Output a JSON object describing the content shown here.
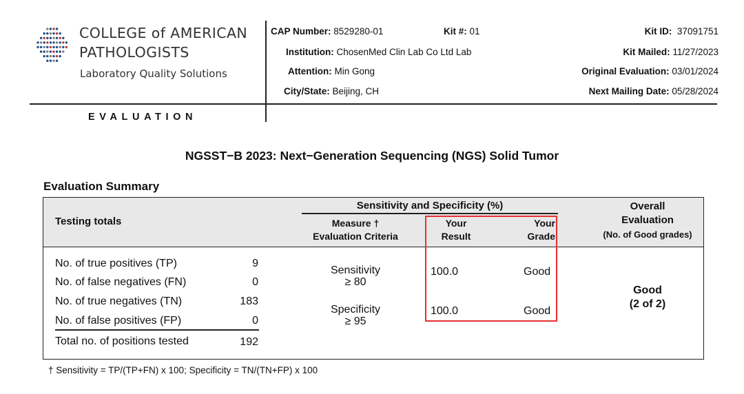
{
  "organization": {
    "name_line1": "COLLEGE of AMERICAN",
    "name_line2": "PATHOLOGISTS",
    "tagline": "Laboratory Quality Solutions",
    "dot_colors": [
      "#1f4e8c",
      "#c0392b",
      "#7f7f7f"
    ]
  },
  "document_label": "EVALUATION",
  "header": {
    "cap_number_label": "CAP Number:",
    "cap_number": "8529280-01",
    "kit_no_label": "Kit #:",
    "kit_no": "01",
    "kit_id_label": "Kit ID:",
    "kit_id": "37091751",
    "institution_label": "Institution:",
    "institution": "ChosenMed Clin Lab Co Ltd Lab",
    "kit_mailed_label": "Kit Mailed:",
    "kit_mailed": "11/27/2023",
    "attention_label": "Attention:",
    "attention": "Min Gong",
    "original_eval_label": "Original Evaluation:",
    "original_eval": "03/01/2024",
    "city_state_label": "City/State:",
    "city_state": "Beijing, CH",
    "next_mailing_label": "Next Mailing Date:",
    "next_mailing": "05/28/2024"
  },
  "title": "NGSST−B 2023: Next−Generation Sequencing (NGS) Solid Tumor",
  "summary": {
    "section_title": "Evaluation Summary",
    "col_testing_totals": "Testing totals",
    "col_group": "Sensitivity and Specificity (%)",
    "col_measure_1": "Measure †",
    "col_measure_2": "Evaluation Criteria",
    "col_result_1": "Your",
    "col_result_2": "Result",
    "col_grade_1": "Your",
    "col_grade_2": "Grade",
    "col_overall_1": "Overall",
    "col_overall_2": "Evaluation",
    "col_overall_3": "(No. of Good grades)",
    "totals": [
      {
        "label": "No. of true positives (TP)",
        "value": "9"
      },
      {
        "label": "No. of false negatives (FN)",
        "value": "0"
      },
      {
        "label": "No. of true negatives (TN)",
        "value": "183"
      },
      {
        "label": "No. of false positives (FP)",
        "value": "0"
      },
      {
        "label": "Total no. of positions tested",
        "value": "192"
      }
    ],
    "measures": [
      {
        "name": "Sensitivity",
        "criteria": "≥ 80",
        "result": "100.0",
        "grade": "Good"
      },
      {
        "name": "Specificity",
        "criteria": "≥ 95",
        "result": "100.0",
        "grade": "Good"
      }
    ],
    "overall_grade": "Good",
    "overall_count": "(2 of 2)",
    "highlight_color": "#e53030"
  },
  "footnote": "† Sensitivity = TP/(TP+FN) x 100; Specificity = TN/(TN+FP) x 100"
}
